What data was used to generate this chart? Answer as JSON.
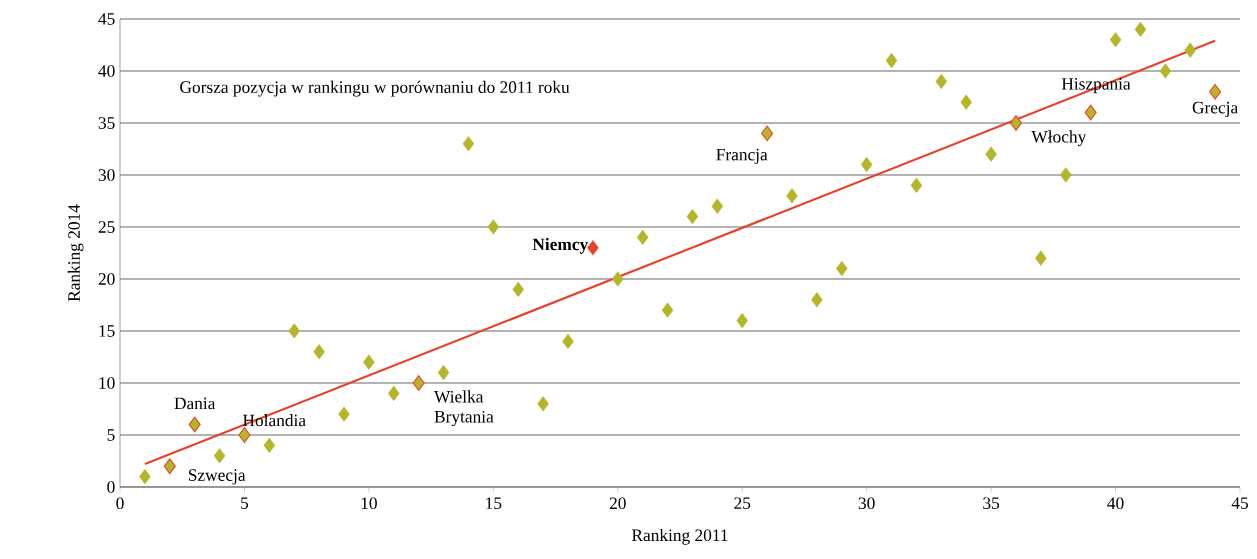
{
  "chart_data": {
    "type": "scatter",
    "xlabel": "Ranking 2011",
    "ylabel": "Ranking 2014",
    "xlim": [
      0,
      45
    ],
    "ylim": [
      0,
      45
    ],
    "xticks": [
      0,
      5,
      10,
      15,
      20,
      25,
      30,
      35,
      40,
      45
    ],
    "yticks": [
      0,
      5,
      10,
      15,
      20,
      25,
      30,
      35,
      40,
      45
    ],
    "grid": "y",
    "marker": "diamond",
    "series": [
      {
        "color": "#b5b52a",
        "x": [
          1,
          4,
          6,
          7,
          8,
          9,
          10,
          11,
          13,
          14,
          15,
          16,
          17,
          18,
          20,
          21,
          22,
          23,
          24,
          25,
          27,
          28,
          29,
          30,
          31,
          32,
          33,
          34,
          35,
          37,
          38,
          40,
          41,
          42,
          43
        ],
        "values": [
          1,
          3,
          4,
          15,
          13,
          7,
          12,
          9,
          11,
          33,
          25,
          19,
          8,
          14,
          20,
          24,
          17,
          26,
          27,
          16,
          28,
          18,
          21,
          31,
          41,
          29,
          39,
          37,
          32,
          22,
          30,
          43,
          44,
          40,
          42
        ]
      },
      {
        "color": "#e8402a",
        "x": [
          2,
          3,
          5,
          12,
          26,
          36,
          39,
          44
        ],
        "values": [
          2,
          6,
          5,
          10,
          34,
          35,
          36,
          38
        ]
      },
      {
        "color": "#e8402a",
        "x": [
          19
        ],
        "values": [
          23
        ]
      },
      {
        "type": "line",
        "marker": "none",
        "color": "#e8402a",
        "x": [
          1,
          44
        ],
        "values": [
          2.2,
          42.9
        ]
      }
    ],
    "annotations": [
      "Gorsza pozycja w rankingu w porównaniu do 2011 roku",
      {
        "text": "Dania",
        "x": 3,
        "y": 6
      },
      {
        "text": "Szwecja",
        "x": 2,
        "y": 2
      },
      {
        "text": "Holandia",
        "x": 5,
        "y": 5
      },
      {
        "text": "Wielka Brytania",
        "x": 12,
        "y": 10
      },
      {
        "text": "**Niemcy**",
        "x": 19,
        "y": 23
      },
      {
        "text": "Francja",
        "x": 26,
        "y": 34
      },
      {
        "text": "Włochy",
        "x": 36,
        "y": 35
      },
      {
        "text": "Hiszpania",
        "x": 39,
        "y": 36
      },
      {
        "text": "Grecja",
        "x": 44,
        "y": 38
      }
    ]
  }
}
